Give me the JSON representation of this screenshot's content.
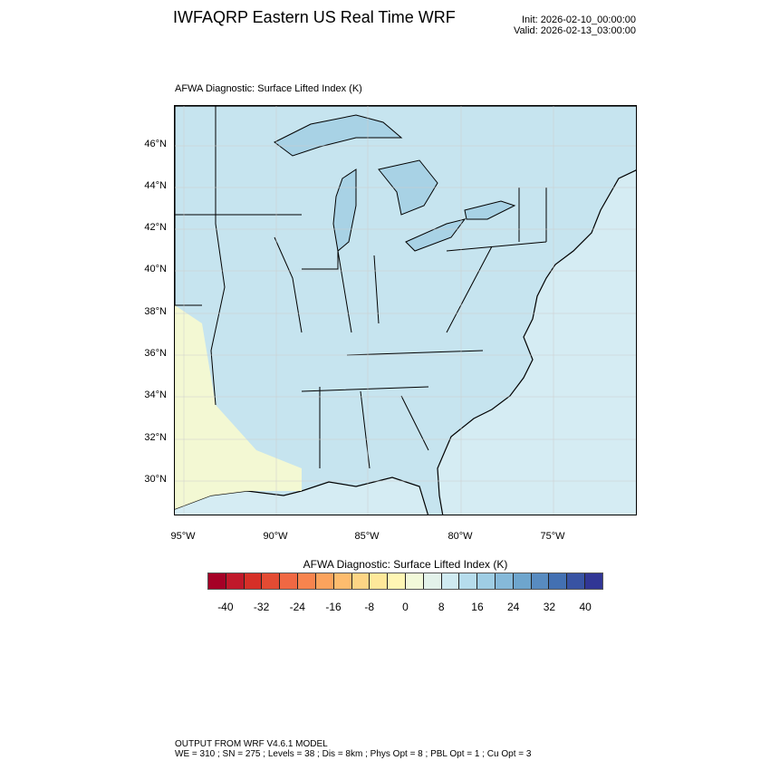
{
  "header": {
    "title": "IWFAQRP Eastern US Real Time WRF",
    "init": "Init: 2026-02-10_00:00:00",
    "valid": "Valid: 2026-02-13_03:00:00",
    "subtitle": "AFWA Diagnostic: Surface Lifted Index   (K)"
  },
  "map": {
    "region": "Eastern United States",
    "lat_labels": [
      "46°N",
      "44°N",
      "42°N",
      "40°N",
      "38°N",
      "36°N",
      "34°N",
      "32°N",
      "30°N"
    ],
    "lon_labels": [
      "95°W",
      "90°W",
      "85°W",
      "80°W",
      "75°W"
    ],
    "land_color": "#c6e4ef",
    "ocean_color": "#d5ecf3",
    "warm_region_color": "#f7f9cf",
    "lake_color": "#a8d2e5"
  },
  "colorbar": {
    "title": "AFWA Diagnostic: Surface Lifted Index  (K)",
    "labels": [
      "-40",
      "-32",
      "-24",
      "-16",
      "-8",
      "0",
      "8",
      "16",
      "24",
      "32",
      "40"
    ],
    "colors": [
      "#a50026",
      "#c0182a",
      "#d62f27",
      "#e34b33",
      "#f06843",
      "#f7844e",
      "#fba35d",
      "#fdbc6e",
      "#fdd585",
      "#fee89a",
      "#fff6b4",
      "#f2f9d9",
      "#e3f2ea",
      "#cfeaf1",
      "#b6dcec",
      "#9fcde4",
      "#86b9d9",
      "#6ea5cd",
      "#588bc0",
      "#4370b2",
      "#3853a3",
      "#313695"
    ]
  },
  "footer": {
    "line1": "OUTPUT FROM WRF V4.6.1 MODEL",
    "line2": "WE = 310 ; SN = 275 ; Levels = 38 ; Dis = 8km ; Phys Opt = 8 ; PBL Opt = 1 ; Cu Opt = 3"
  }
}
